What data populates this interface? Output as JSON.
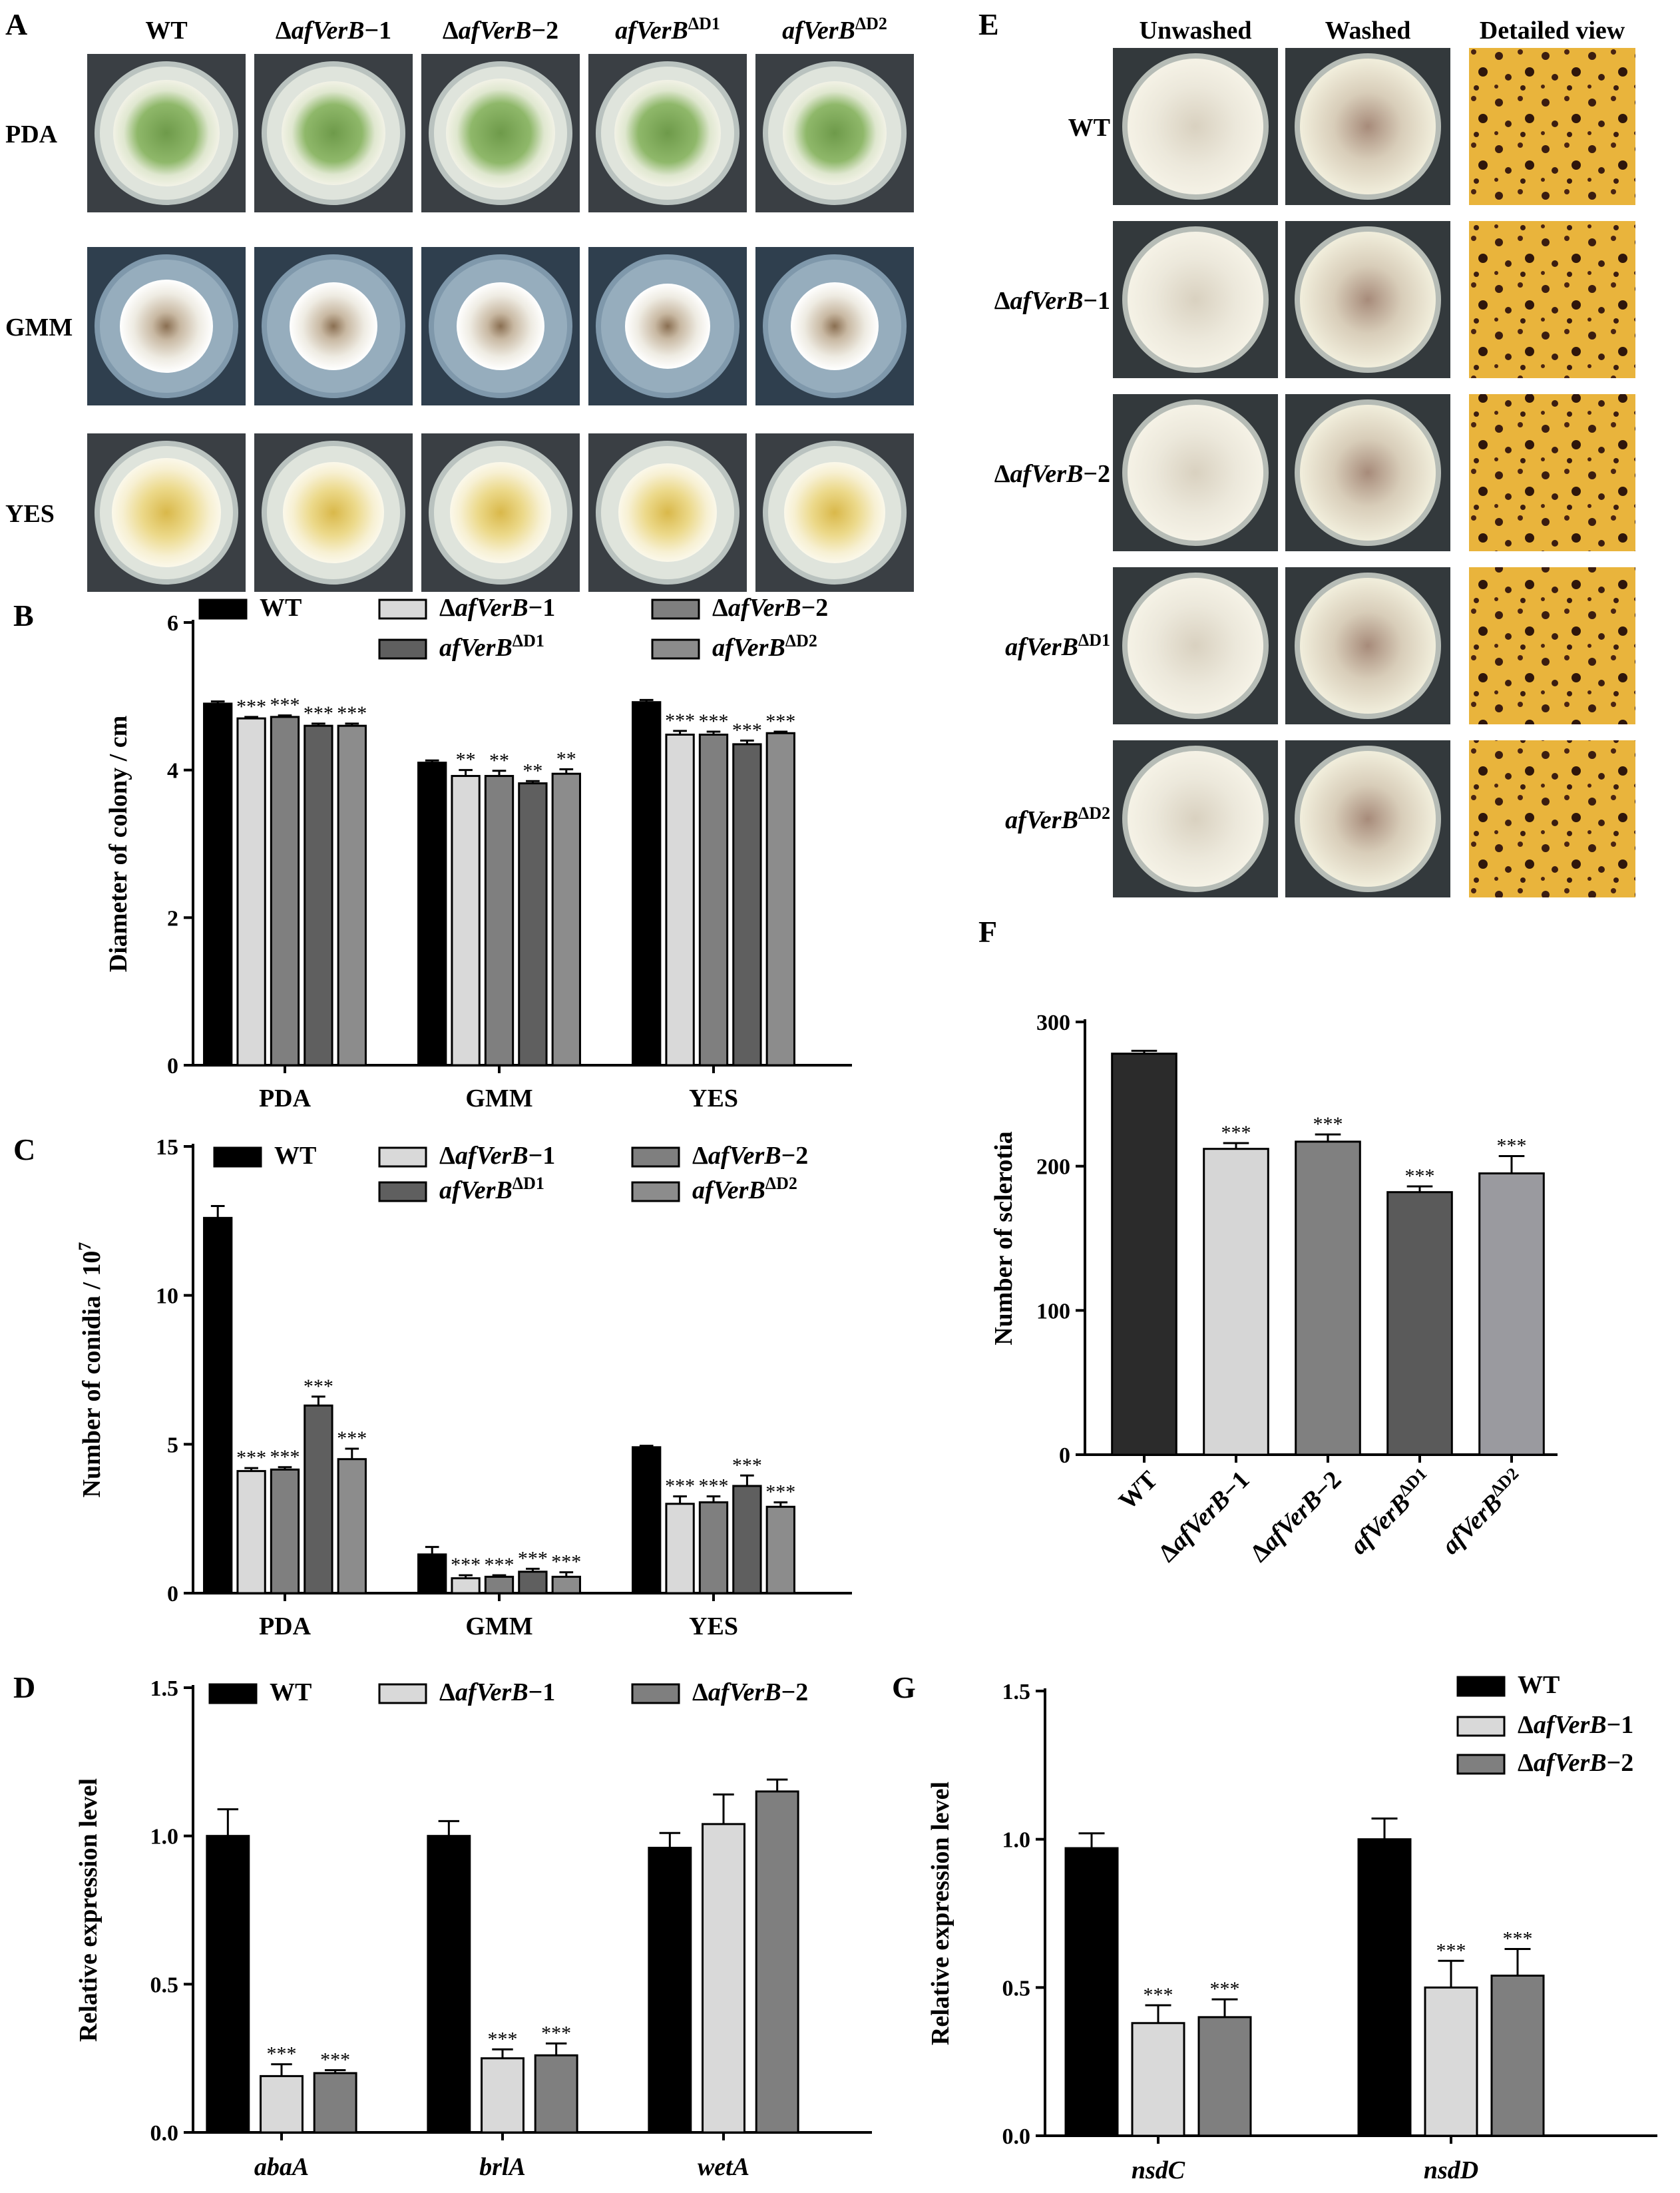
{
  "panels": {
    "A": {
      "letter": "A",
      "columns": [
        "WT",
        "ΔafVerB−1",
        "ΔafVerB−2",
        "afVerB^ΔD1",
        "afVerB^ΔD2"
      ],
      "rows": [
        "PDA",
        "GMM",
        "YES"
      ]
    },
    "E": {
      "letter": "E",
      "columns": [
        "Unwashed",
        "Washed",
        "Detailed view"
      ],
      "rows": [
        "WT",
        "ΔafVerB−1",
        "ΔafVerB−2",
        "afVerB^ΔD1",
        "afVerB^ΔD2"
      ]
    }
  },
  "colors": {
    "WT": "#000000",
    "KO1": "#d9d9d9",
    "KO2": "#7f7f7f",
    "D1": "#5f5f5f",
    "D2": "#8c8c8c",
    "F_WT": "#2b2b2b",
    "F_KO1": "#d6d6d6",
    "F_KO2": "#808080",
    "F_D1": "#5a5a5a",
    "F_D2": "#9a9a9f"
  },
  "chart_data": [
    {
      "id": "B",
      "letter": "B",
      "type": "bar",
      "ylabel": "Diameter of colony / cm",
      "ylim": [
        0,
        6
      ],
      "yticks": [
        0,
        2,
        4,
        6
      ],
      "categories": [
        "PDA",
        "GMM",
        "YES"
      ],
      "legend": [
        "WT",
        "ΔafVerB−1",
        "ΔafVerB−2",
        "afVerB^ΔD1",
        "afVerB^ΔD2"
      ],
      "series": [
        {
          "name": "WT",
          "values": [
            4.9,
            4.1,
            4.92
          ],
          "errors": [
            0.03,
            0.03,
            0.03
          ],
          "sig": [
            "",
            "",
            ""
          ]
        },
        {
          "name": "ΔafVerB−1",
          "values": [
            4.7,
            3.92,
            4.48
          ],
          "errors": [
            0.02,
            0.08,
            0.05
          ],
          "sig": [
            "***",
            "**",
            "***"
          ]
        },
        {
          "name": "ΔafVerB−2",
          "values": [
            4.72,
            3.92,
            4.48
          ],
          "errors": [
            0.02,
            0.07,
            0.04
          ],
          "sig": [
            "***",
            "**",
            "***"
          ]
        },
        {
          "name": "afVerB^ΔD1",
          "values": [
            4.6,
            3.82,
            4.35
          ],
          "errors": [
            0.03,
            0.03,
            0.05
          ],
          "sig": [
            "***",
            "**",
            "***"
          ]
        },
        {
          "name": "afVerB^ΔD2",
          "values": [
            4.6,
            3.95,
            4.5
          ],
          "errors": [
            0.03,
            0.06,
            0.02
          ],
          "sig": [
            "***",
            "**",
            "***"
          ]
        }
      ]
    },
    {
      "id": "C",
      "letter": "C",
      "type": "bar",
      "ylabel": "Number of conidia / 10^7",
      "ylim": [
        0,
        15
      ],
      "yticks": [
        0,
        5,
        10,
        15
      ],
      "categories": [
        "PDA",
        "GMM",
        "YES"
      ],
      "legend": [
        "WT",
        "ΔafVerB−1",
        "ΔafVerB−2",
        "afVerB^ΔD1",
        "afVerB^ΔD2"
      ],
      "series": [
        {
          "name": "WT",
          "values": [
            12.6,
            1.3,
            4.9
          ],
          "errors": [
            0.4,
            0.25,
            0.05
          ],
          "sig": [
            "",
            "",
            ""
          ]
        },
        {
          "name": "ΔafVerB−1",
          "values": [
            4.1,
            0.5,
            3.0
          ],
          "errors": [
            0.1,
            0.1,
            0.25
          ],
          "sig": [
            "***",
            "***",
            "***"
          ]
        },
        {
          "name": "ΔafVerB−2",
          "values": [
            4.15,
            0.55,
            3.05
          ],
          "errors": [
            0.08,
            0.05,
            0.2
          ],
          "sig": [
            "***",
            "***",
            "***"
          ]
        },
        {
          "name": "afVerB^ΔD1",
          "values": [
            6.3,
            0.72,
            3.6
          ],
          "errors": [
            0.3,
            0.1,
            0.35
          ],
          "sig": [
            "***",
            "***",
            "***"
          ]
        },
        {
          "name": "afVerB^ΔD2",
          "values": [
            4.5,
            0.55,
            2.9
          ],
          "errors": [
            0.35,
            0.15,
            0.15
          ],
          "sig": [
            "***",
            "***",
            "***"
          ]
        }
      ]
    },
    {
      "id": "D",
      "letter": "D",
      "type": "bar",
      "ylabel": "Relative expression level",
      "ylim": [
        0,
        1.5
      ],
      "yticks": [
        "0.0",
        "0.5",
        "1.0",
        "1.5"
      ],
      "categories": [
        "abaA",
        "brlA",
        "wetA"
      ],
      "legend": [
        "WT",
        "ΔafVerB−1",
        "ΔafVerB−2"
      ],
      "series": [
        {
          "name": "WT",
          "values": [
            1.0,
            1.0,
            0.96
          ],
          "errors": [
            0.09,
            0.05,
            0.05
          ],
          "sig": [
            "",
            "",
            ""
          ]
        },
        {
          "name": "ΔafVerB−1",
          "values": [
            0.19,
            0.25,
            1.04
          ],
          "errors": [
            0.04,
            0.03,
            0.1
          ],
          "sig": [
            "***",
            "***",
            ""
          ]
        },
        {
          "name": "ΔafVerB−2",
          "values": [
            0.2,
            0.26,
            1.15
          ],
          "errors": [
            0.01,
            0.04,
            0.04
          ],
          "sig": [
            "***",
            "***",
            ""
          ]
        }
      ]
    },
    {
      "id": "F",
      "letter": "F",
      "type": "bar",
      "ylabel": "Number of sclerotia",
      "ylim": [
        0,
        300
      ],
      "yticks": [
        0,
        100,
        200,
        300
      ],
      "categories": [
        "WT",
        "ΔafVerB−1",
        "ΔafVerB−2",
        "afVerB^ΔD1",
        "afVerB^ΔD2"
      ],
      "values": [
        278,
        212,
        217,
        182,
        195
      ],
      "errors": [
        2,
        4,
        5,
        4,
        12
      ],
      "sig": [
        "",
        "***",
        "***",
        "***",
        "***"
      ]
    },
    {
      "id": "G",
      "letter": "G",
      "type": "bar",
      "ylabel": "Relative expression level",
      "ylim": [
        0,
        1.5
      ],
      "yticks": [
        "0.0",
        "0.5",
        "1.0",
        "1.5"
      ],
      "categories": [
        "nsdC",
        "nsdD"
      ],
      "legend": [
        "WT",
        "ΔafVerB−1",
        "ΔafVerB−2"
      ],
      "series": [
        {
          "name": "WT",
          "values": [
            0.97,
            1.0
          ],
          "errors": [
            0.05,
            0.07
          ],
          "sig": [
            "",
            ""
          ]
        },
        {
          "name": "ΔafVerB−1",
          "values": [
            0.38,
            0.5
          ],
          "errors": [
            0.06,
            0.09
          ],
          "sig": [
            "***",
            "***"
          ]
        },
        {
          "name": "ΔafVerB−2",
          "values": [
            0.4,
            0.54
          ],
          "errors": [
            0.06,
            0.09
          ],
          "sig": [
            "***",
            "***"
          ]
        }
      ]
    }
  ]
}
